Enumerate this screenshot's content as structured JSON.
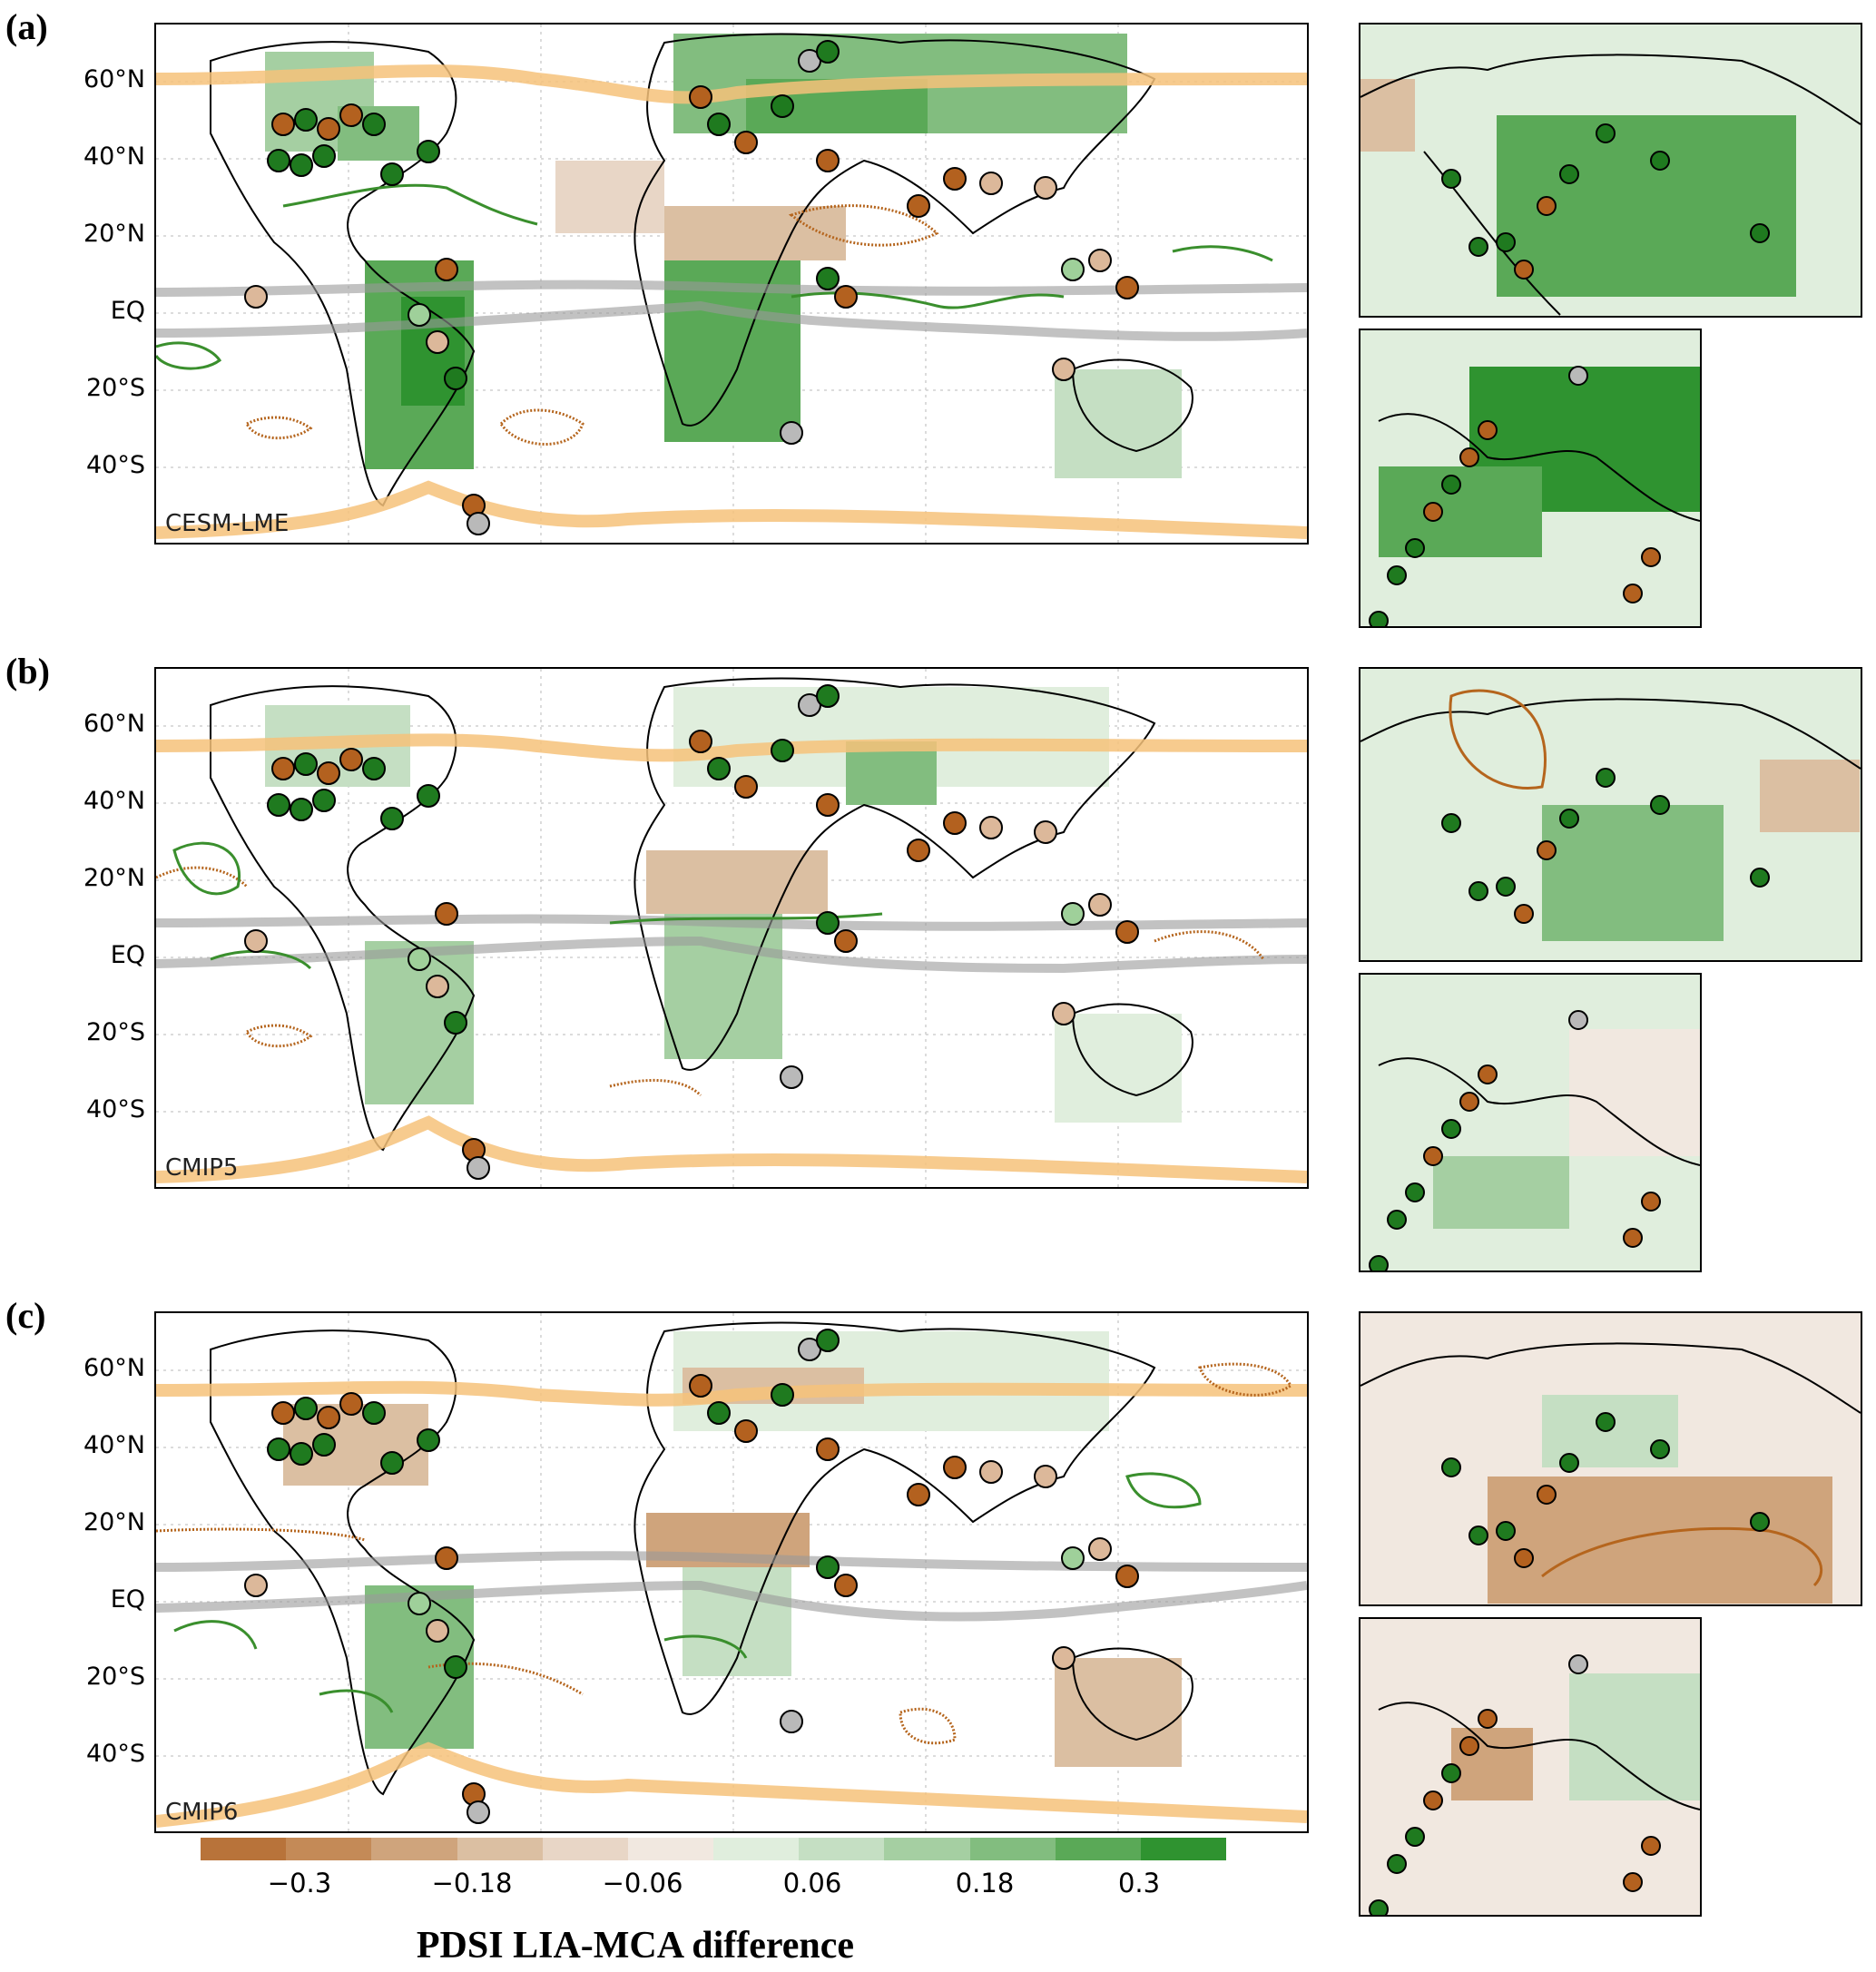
{
  "panels": [
    {
      "id": "a",
      "label": "(a)",
      "model": "CESM-LME"
    },
    {
      "id": "b",
      "label": "(b)",
      "model": "CMIP5"
    },
    {
      "id": "c",
      "label": "(c)",
      "model": "CMIP6"
    }
  ],
  "lat_labels": [
    "60°N",
    "40°N",
    "20°N",
    "EQ",
    "20°S",
    "40°S"
  ],
  "colorbar": {
    "title": "PDSI LIA-MCA difference",
    "ticks": [
      "−0.3",
      "−0.18",
      "−0.06",
      "0.06",
      "0.18",
      "0.3"
    ],
    "colors": [
      "#b8733a",
      "#c48a57",
      "#cfa47c",
      "#dbbfa2",
      "#e8d6c6",
      "#f1e8e0",
      "#e0eedd",
      "#c5dfc3",
      "#a5cfa2",
      "#82bd7f",
      "#5aa957",
      "#2f9330"
    ]
  },
  "legend_colors": {
    "dry_contour": "#b5651d",
    "wet_contour": "#3a8f2d",
    "jet_band": "#f6c27a",
    "itcz_band": "#9a9a9a",
    "marker_dark_brown": "#b3611f",
    "marker_light_brown": "#dcb89a",
    "marker_dark_green": "#1f7a1f",
    "marker_light_green": "#9fd09a",
    "marker_grey": "#b9b9b9"
  }
}
